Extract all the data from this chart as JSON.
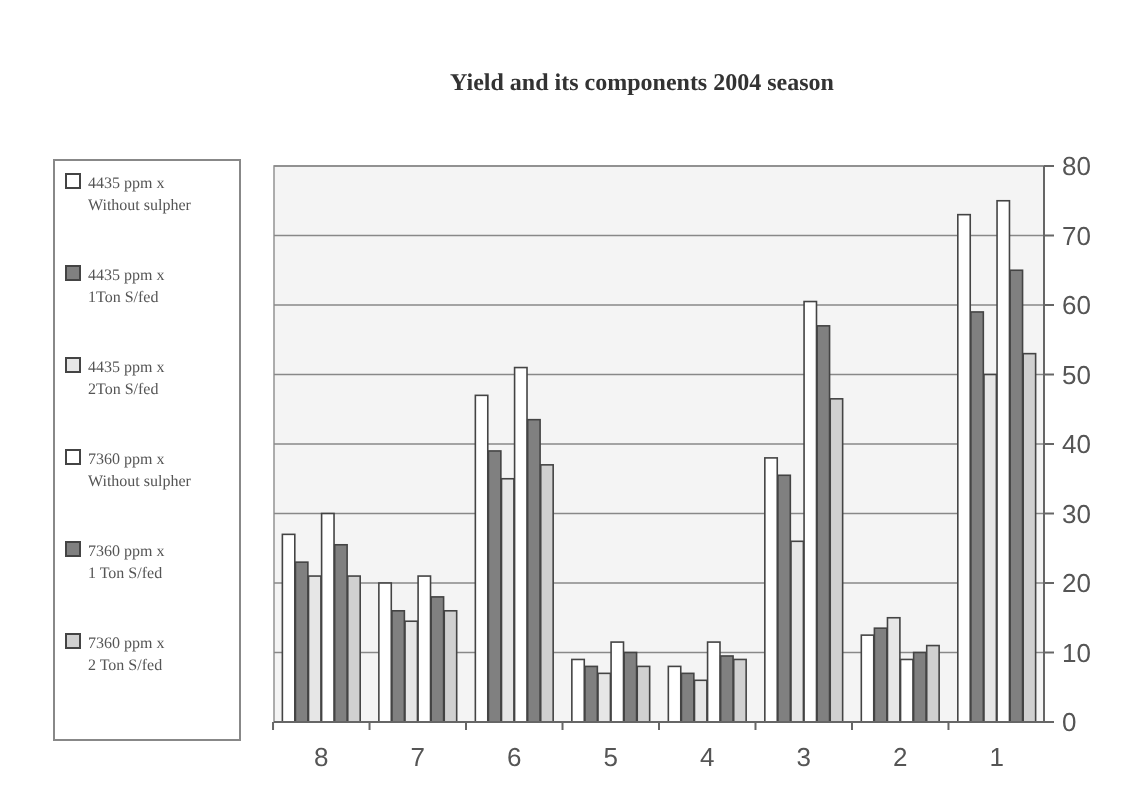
{
  "chart_data": {
    "type": "bar",
    "title": "Yield and its components 2004 season",
    "categories": [
      "8",
      "7",
      "6",
      "5",
      "4",
      "3",
      "2",
      "1"
    ],
    "series": [
      {
        "name": "4435 ppm x Without sulpher",
        "color": "#ffffff",
        "values": [
          27,
          20,
          47,
          9,
          8,
          38,
          12.5,
          73
        ]
      },
      {
        "name": "4435 ppm x 1Ton S/fed",
        "color": "#808080",
        "values": [
          23,
          16,
          39,
          8,
          7,
          35.5,
          13.5,
          59
        ]
      },
      {
        "name": "4435 ppm x 2Ton S/fed",
        "color": "#e6e6e6",
        "values": [
          21,
          14.5,
          35,
          7,
          6,
          26,
          15,
          50
        ]
      },
      {
        "name": "7360 ppm x Without sulpher",
        "color": "#ffffff",
        "values": [
          30,
          21,
          51,
          11.5,
          11.5,
          60.5,
          9,
          75
        ]
      },
      {
        "name": "7360 ppm x 1 Ton S/fed",
        "color": "#808080",
        "values": [
          25.5,
          18,
          43.5,
          10,
          9.5,
          57,
          10,
          65
        ]
      },
      {
        "name": "7360 ppm x 2 Ton S/fed",
        "color": "#d0d0d0",
        "values": [
          21,
          16,
          37,
          8,
          9,
          46.5,
          11,
          53
        ]
      }
    ],
    "ylim": [
      0,
      80
    ],
    "yticks": [
      0,
      10,
      20,
      30,
      40,
      50,
      60,
      70,
      80
    ],
    "grid": "y",
    "legend": "left"
  }
}
